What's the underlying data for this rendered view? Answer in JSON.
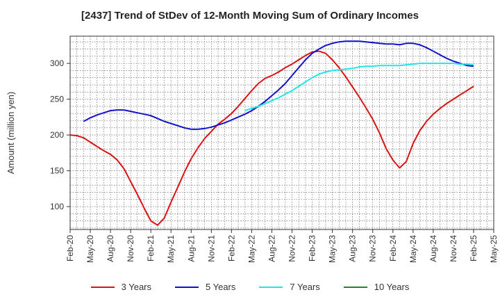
{
  "chart_data": {
    "type": "line",
    "title": "[2437]  Trend of StDev of 12-Month Moving Sum of Ordinary Incomes",
    "ylabel": "Amount (million yen)",
    "xlabel": "",
    "ylim": [
      68,
      338
    ],
    "yticks": [
      100,
      150,
      200,
      250,
      300
    ],
    "x_start_month_index": 0,
    "x_end_month_index": 63,
    "xtick_labels": [
      "Feb-20",
      "May-20",
      "Aug-20",
      "Nov-20",
      "Feb-21",
      "May-21",
      "Aug-21",
      "Nov-21",
      "Feb-22",
      "May-22",
      "Aug-22",
      "Nov-22",
      "Feb-23",
      "May-23",
      "Aug-23",
      "Nov-23",
      "Feb-24",
      "May-24",
      "Aug-24",
      "Nov-24",
      "Feb-25",
      "May-25"
    ],
    "grid": true,
    "legend_position": "bottom",
    "series": [
      {
        "name": "3 Years",
        "color": "#dd1111",
        "points": [
          [
            0,
            200
          ],
          [
            1,
            199
          ],
          [
            2,
            196
          ],
          [
            3,
            190
          ],
          [
            4,
            184
          ],
          [
            5,
            178
          ],
          [
            6,
            173
          ],
          [
            7,
            165
          ],
          [
            8,
            153
          ],
          [
            9,
            135
          ],
          [
            10,
            117
          ],
          [
            11,
            98
          ],
          [
            12,
            80
          ],
          [
            13,
            74
          ],
          [
            14,
            84
          ],
          [
            15,
            106
          ],
          [
            16,
            127
          ],
          [
            17,
            148
          ],
          [
            18,
            167
          ],
          [
            19,
            182
          ],
          [
            20,
            195
          ],
          [
            21,
            205
          ],
          [
            22,
            215
          ],
          [
            23,
            222
          ],
          [
            24,
            230
          ],
          [
            25,
            240
          ],
          [
            26,
            251
          ],
          [
            27,
            262
          ],
          [
            28,
            272
          ],
          [
            29,
            279
          ],
          [
            30,
            283
          ],
          [
            31,
            288
          ],
          [
            32,
            294
          ],
          [
            33,
            299
          ],
          [
            34,
            305
          ],
          [
            35,
            311
          ],
          [
            36,
            316
          ],
          [
            37,
            317
          ],
          [
            38,
            314
          ],
          [
            39,
            305
          ],
          [
            40,
            294
          ],
          [
            41,
            281
          ],
          [
            42,
            267
          ],
          [
            43,
            253
          ],
          [
            44,
            238
          ],
          [
            45,
            222
          ],
          [
            46,
            203
          ],
          [
            47,
            181
          ],
          [
            48,
            165
          ],
          [
            49,
            154
          ],
          [
            50,
            163
          ],
          [
            51,
            188
          ],
          [
            52,
            206
          ],
          [
            53,
            219
          ],
          [
            54,
            229
          ],
          [
            55,
            237
          ],
          [
            56,
            244
          ],
          [
            57,
            250
          ],
          [
            58,
            256
          ],
          [
            59,
            262
          ],
          [
            60,
            268
          ]
        ]
      },
      {
        "name": "5 Years",
        "color": "#1111cc",
        "points": [
          [
            2,
            219
          ],
          [
            3,
            224
          ],
          [
            4,
            228
          ],
          [
            5,
            231
          ],
          [
            6,
            234
          ],
          [
            7,
            235
          ],
          [
            8,
            235
          ],
          [
            9,
            233
          ],
          [
            10,
            231
          ],
          [
            11,
            229
          ],
          [
            12,
            227
          ],
          [
            13,
            223
          ],
          [
            14,
            219
          ],
          [
            15,
            216
          ],
          [
            16,
            213
          ],
          [
            17,
            210
          ],
          [
            18,
            208
          ],
          [
            19,
            208
          ],
          [
            20,
            209
          ],
          [
            21,
            211
          ],
          [
            22,
            214
          ],
          [
            23,
            217
          ],
          [
            24,
            221
          ],
          [
            25,
            225
          ],
          [
            26,
            229
          ],
          [
            27,
            234
          ],
          [
            28,
            240
          ],
          [
            29,
            247
          ],
          [
            30,
            255
          ],
          [
            31,
            263
          ],
          [
            32,
            272
          ],
          [
            33,
            283
          ],
          [
            34,
            294
          ],
          [
            35,
            305
          ],
          [
            36,
            314
          ],
          [
            37,
            320
          ],
          [
            38,
            325
          ],
          [
            39,
            328
          ],
          [
            40,
            330
          ],
          [
            41,
            331
          ],
          [
            42,
            331
          ],
          [
            43,
            331
          ],
          [
            44,
            330
          ],
          [
            45,
            329
          ],
          [
            46,
            328
          ],
          [
            47,
            327
          ],
          [
            48,
            327
          ],
          [
            49,
            326
          ],
          [
            50,
            328
          ],
          [
            51,
            328
          ],
          [
            52,
            326
          ],
          [
            53,
            322
          ],
          [
            54,
            317
          ],
          [
            55,
            312
          ],
          [
            56,
            307
          ],
          [
            57,
            303
          ],
          [
            58,
            300
          ],
          [
            59,
            297
          ],
          [
            60,
            296
          ]
        ]
      },
      {
        "name": "7 Years",
        "color": "#22e5e5",
        "points": [
          [
            26,
            234
          ],
          [
            27,
            237
          ],
          [
            28,
            240
          ],
          [
            29,
            244
          ],
          [
            30,
            248
          ],
          [
            31,
            252
          ],
          [
            32,
            257
          ],
          [
            33,
            262
          ],
          [
            34,
            268
          ],
          [
            35,
            274
          ],
          [
            36,
            280
          ],
          [
            37,
            285
          ],
          [
            38,
            288
          ],
          [
            39,
            290
          ],
          [
            40,
            291
          ],
          [
            41,
            292
          ],
          [
            42,
            293
          ],
          [
            43,
            295
          ],
          [
            44,
            296
          ],
          [
            45,
            296
          ],
          [
            46,
            297
          ],
          [
            47,
            297
          ],
          [
            48,
            297
          ],
          [
            49,
            297
          ],
          [
            50,
            298
          ],
          [
            51,
            299
          ],
          [
            52,
            300
          ],
          [
            53,
            300
          ],
          [
            54,
            300
          ],
          [
            55,
            300
          ],
          [
            56,
            300
          ],
          [
            57,
            300
          ],
          [
            58,
            299
          ],
          [
            59,
            299
          ],
          [
            60,
            298
          ]
        ]
      },
      {
        "name": "10 Years",
        "color": "#228822",
        "points": []
      }
    ]
  }
}
